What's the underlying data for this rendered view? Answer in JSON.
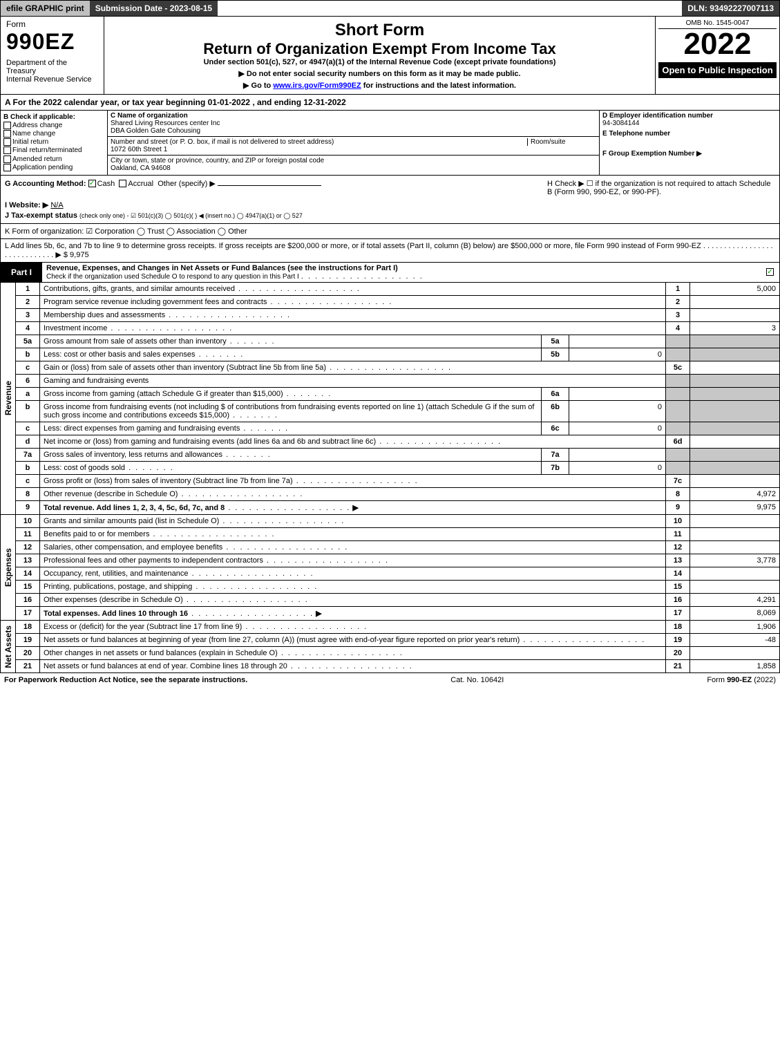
{
  "topbar": {
    "efile": "efile GRAPHIC print",
    "subdate": "Submission Date - 2023-08-15",
    "dln": "DLN: 93492227007113"
  },
  "header": {
    "form_label": "Form",
    "form_no": "990EZ",
    "dept": "Department of the Treasury\nInternal Revenue Service",
    "short": "Short Form",
    "title": "Return of Organization Exempt From Income Tax",
    "under": "Under section 501(c), 527, or 4947(a)(1) of the Internal Revenue Code (except private foundations)",
    "note1": "▶ Do not enter social security numbers on this form as it may be made public.",
    "note2_pre": "▶ Go to ",
    "note2_link": "www.irs.gov/Form990EZ",
    "note2_post": " for instructions and the latest information.",
    "omb": "OMB No. 1545-0047",
    "year": "2022",
    "open": "Open to Public Inspection"
  },
  "A": "A  For the 2022 calendar year, or tax year beginning 01-01-2022  , and ending 12-31-2022",
  "B": {
    "label": "B  Check if applicable:",
    "items": [
      "Address change",
      "Name change",
      "Initial return",
      "Final return/terminated",
      "Amended return",
      "Application pending"
    ]
  },
  "C": {
    "name_lbl": "C Name of organization",
    "name": "Shared Living Resources center Inc",
    "dba": "DBA Golden Gate Cohousing",
    "street_lbl": "Number and street (or P. O. box, if mail is not delivered to street address)",
    "room_lbl": "Room/suite",
    "street": "1072 60th Street 1",
    "city_lbl": "City or town, state or province, country, and ZIP or foreign postal code",
    "city": "Oakland, CA  94608"
  },
  "D": {
    "ein_lbl": "D Employer identification number",
    "ein": "94-3084144",
    "tel_lbl": "E Telephone number",
    "tel": "",
    "grp_lbl": "F Group Exemption Number   ▶",
    "grp": ""
  },
  "G": {
    "label": "G Accounting Method:",
    "cash": "Cash",
    "accrual": "Accrual",
    "other": "Other (specify) ▶"
  },
  "H": "H   Check ▶  ☐  if the organization is not required to attach Schedule B (Form 990, 990-EZ, or 990-PF).",
  "I": {
    "label": "I Website: ▶",
    "val": "N/A"
  },
  "J": {
    "label": "J Tax-exempt status",
    "rest": "(check only one) - ☑ 501(c)(3)  ◯ 501(c)(  ) ◀ (insert no.)  ◯ 4947(a)(1) or  ◯ 527"
  },
  "K": "K Form of organization:  ☑ Corporation  ◯ Trust  ◯ Association  ◯ Other",
  "L": "L Add lines 5b, 6c, and 7b to line 9 to determine gross receipts. If gross receipts are $200,000 or more, or if total assets (Part II, column (B) below) are $500,000 or more, file Form 990 instead of Form 990-EZ  .  .  .  .  .  .  .  .  .  .  .  .  .  .  .  .  .  .  .  .  .  .  .  .  .  .  .  .  .  ▶ $ 9,975",
  "part1": {
    "label": "Part I",
    "title": "Revenue, Expenses, and Changes in Net Assets or Fund Balances (see the instructions for Part I)",
    "check": "Check if the organization used Schedule O to respond to any question in this Part I"
  },
  "sidelabels": {
    "rev": "Revenue",
    "exp": "Expenses",
    "na": "Net Assets"
  },
  "rev": [
    {
      "n": "1",
      "d": "Contributions, gifts, grants, and similar amounts received",
      "r": "1",
      "v": "5,000"
    },
    {
      "n": "2",
      "d": "Program service revenue including government fees and contracts",
      "r": "2",
      "v": ""
    },
    {
      "n": "3",
      "d": "Membership dues and assessments",
      "r": "3",
      "v": ""
    },
    {
      "n": "4",
      "d": "Investment income",
      "r": "4",
      "v": "3"
    },
    {
      "n": "5a",
      "d": "Gross amount from sale of assets other than inventory",
      "mn": "5a",
      "mv": ""
    },
    {
      "n": "b",
      "d": "Less: cost or other basis and sales expenses",
      "mn": "5b",
      "mv": "0"
    },
    {
      "n": "c",
      "d": "Gain or (loss) from sale of assets other than inventory (Subtract line 5b from line 5a)",
      "r": "5c",
      "v": ""
    },
    {
      "n": "6",
      "d": "Gaming and fundraising events",
      "noval": true
    },
    {
      "n": "a",
      "d": "Gross income from gaming (attach Schedule G if greater than $15,000)",
      "mn": "6a",
      "mv": ""
    },
    {
      "n": "b",
      "d": "Gross income from fundraising events (not including $                         of contributions from fundraising events reported on line 1) (attach Schedule G if the sum of such gross income and contributions exceeds $15,000)",
      "mn": "6b",
      "mv": "0"
    },
    {
      "n": "c",
      "d": "Less: direct expenses from gaming and fundraising events",
      "mn": "6c",
      "mv": "0"
    },
    {
      "n": "d",
      "d": "Net income or (loss) from gaming and fundraising events (add lines 6a and 6b and subtract line 6c)",
      "r": "6d",
      "v": ""
    },
    {
      "n": "7a",
      "d": "Gross sales of inventory, less returns and allowances",
      "mn": "7a",
      "mv": ""
    },
    {
      "n": "b",
      "d": "Less: cost of goods sold",
      "mn": "7b",
      "mv": "0"
    },
    {
      "n": "c",
      "d": "Gross profit or (loss) from sales of inventory (Subtract line 7b from line 7a)",
      "r": "7c",
      "v": ""
    },
    {
      "n": "8",
      "d": "Other revenue (describe in Schedule O)",
      "r": "8",
      "v": "4,972"
    },
    {
      "n": "9",
      "d": "Total revenue. Add lines 1, 2, 3, 4, 5c, 6d, 7c, and 8",
      "r": "9",
      "v": "9,975",
      "bold": true,
      "arrow": true
    }
  ],
  "exp": [
    {
      "n": "10",
      "d": "Grants and similar amounts paid (list in Schedule O)",
      "r": "10",
      "v": ""
    },
    {
      "n": "11",
      "d": "Benefits paid to or for members",
      "r": "11",
      "v": ""
    },
    {
      "n": "12",
      "d": "Salaries, other compensation, and employee benefits",
      "r": "12",
      "v": ""
    },
    {
      "n": "13",
      "d": "Professional fees and other payments to independent contractors",
      "r": "13",
      "v": "3,778"
    },
    {
      "n": "14",
      "d": "Occupancy, rent, utilities, and maintenance",
      "r": "14",
      "v": ""
    },
    {
      "n": "15",
      "d": "Printing, publications, postage, and shipping",
      "r": "15",
      "v": ""
    },
    {
      "n": "16",
      "d": "Other expenses (describe in Schedule O)",
      "r": "16",
      "v": "4,291"
    },
    {
      "n": "17",
      "d": "Total expenses. Add lines 10 through 16",
      "r": "17",
      "v": "8,069",
      "bold": true,
      "arrow": true
    }
  ],
  "na": [
    {
      "n": "18",
      "d": "Excess or (deficit) for the year (Subtract line 17 from line 9)",
      "r": "18",
      "v": "1,906"
    },
    {
      "n": "19",
      "d": "Net assets or fund balances at beginning of year (from line 27, column (A)) (must agree with end-of-year figure reported on prior year's return)",
      "r": "19",
      "v": "-48"
    },
    {
      "n": "20",
      "d": "Other changes in net assets or fund balances (explain in Schedule O)",
      "r": "20",
      "v": ""
    },
    {
      "n": "21",
      "d": "Net assets or fund balances at end of year. Combine lines 18 through 20",
      "r": "21",
      "v": "1,858"
    }
  ],
  "footer": {
    "left": "For Paperwork Reduction Act Notice, see the separate instructions.",
    "mid": "Cat. No. 10642I",
    "right_pre": "Form ",
    "right_bold": "990-EZ",
    "right_post": " (2022)"
  }
}
